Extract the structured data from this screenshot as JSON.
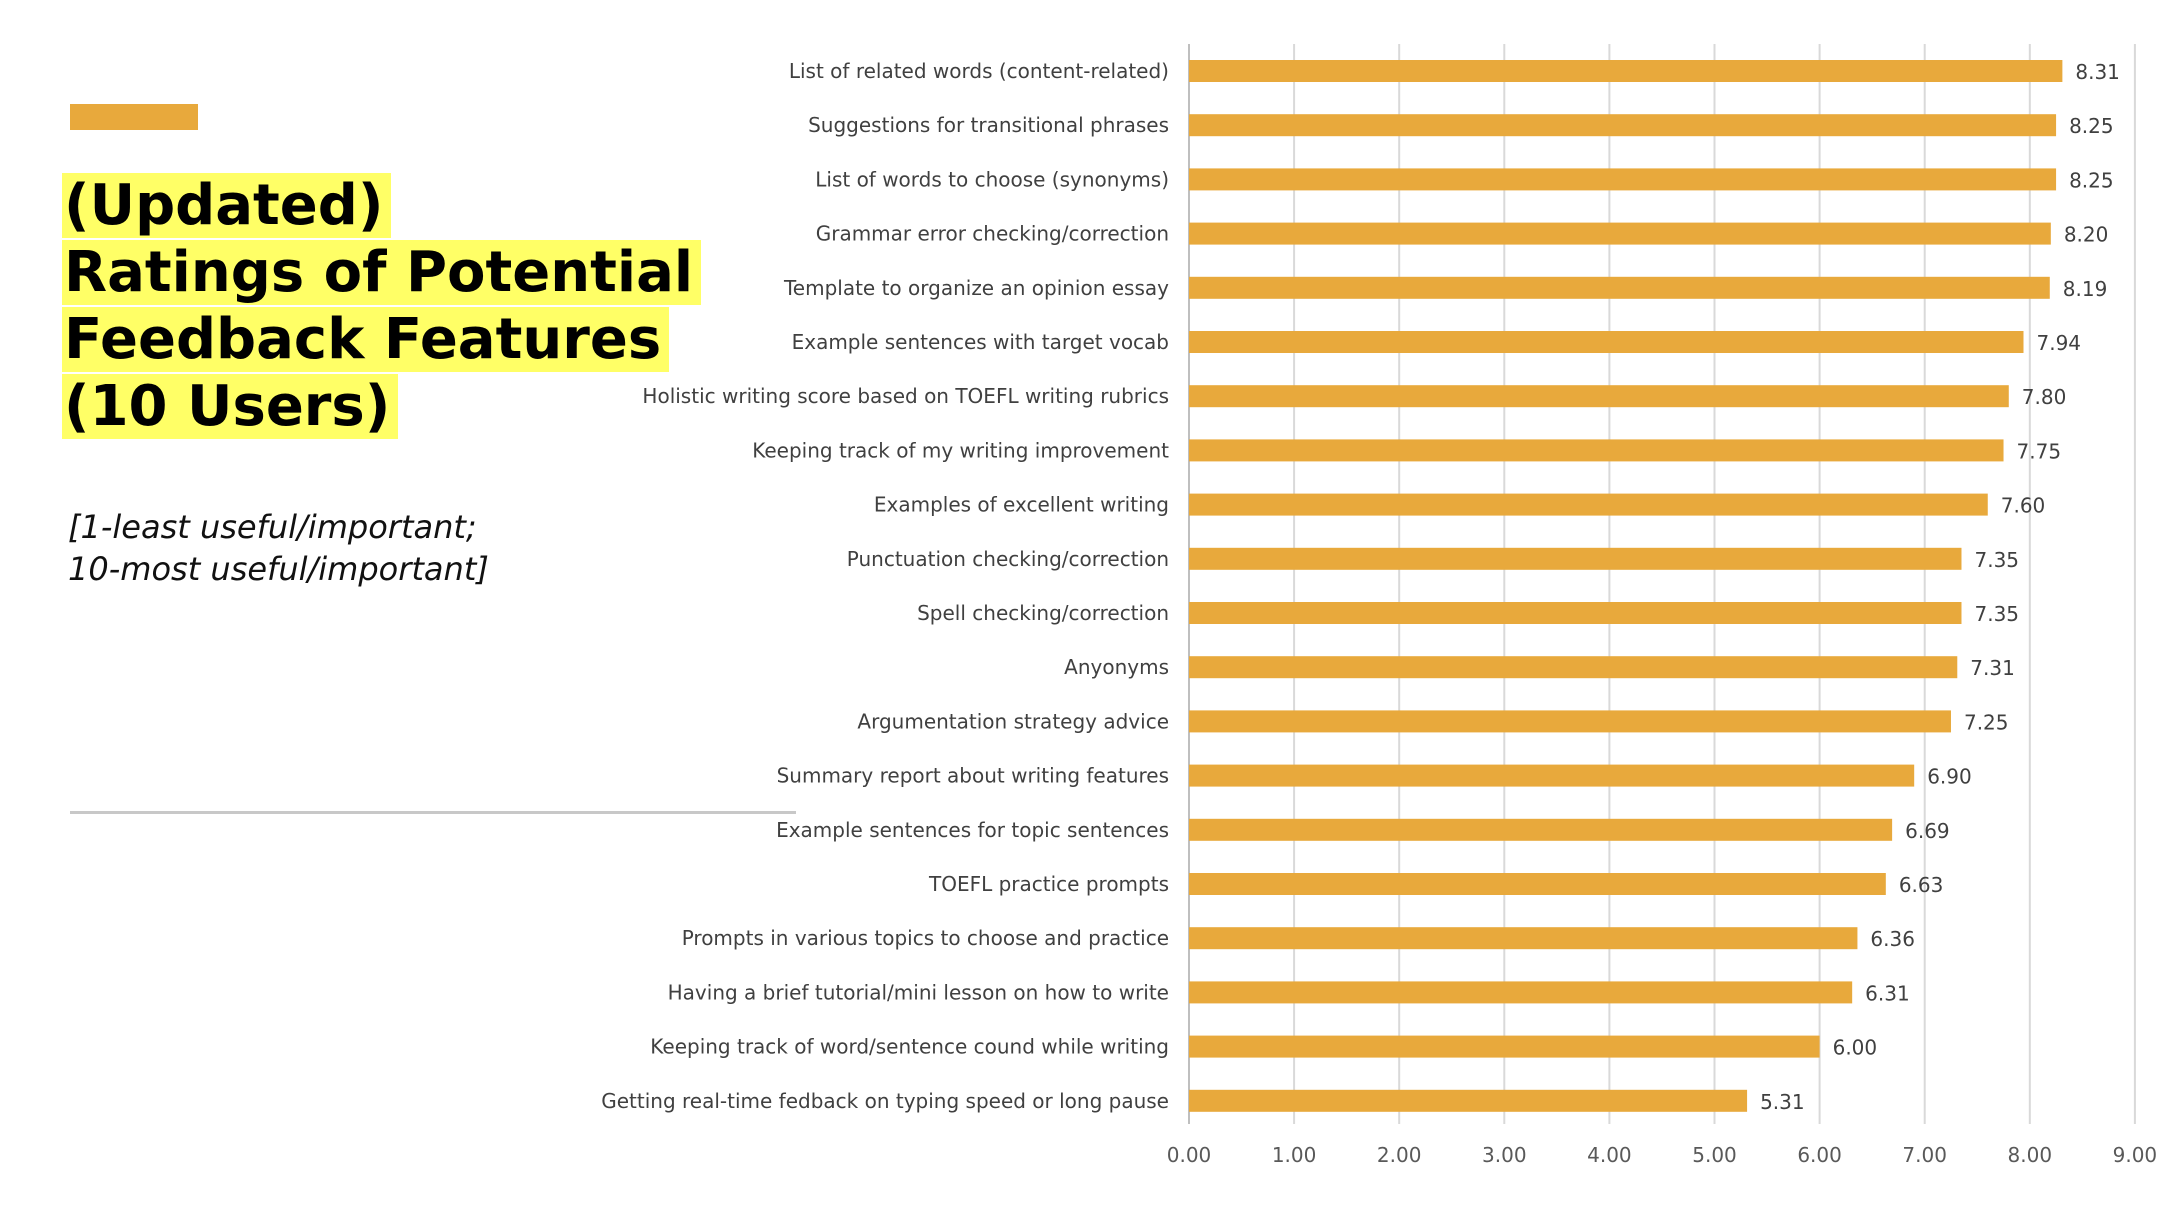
{
  "slide": {
    "title_lines": [
      "(Updated)",
      "Ratings of Potential",
      "Feedback Features",
      "(10 Users)"
    ],
    "subtitle_lines": [
      "[1-least useful/important;",
      "10-most useful/important]"
    ],
    "accent_color": "#E8A93C",
    "highlight_color": "#FFFF66"
  },
  "chart_data": {
    "type": "bar",
    "orientation": "horizontal",
    "categories": [
      "List of related words (content-related)",
      "Suggestions for transitional phrases",
      "List of words to choose (synonyms)",
      "Grammar error checking/correction",
      "Template to organize an opinion essay",
      "Example sentences with target vocab",
      "Holistic writing score based on TOEFL writing rubrics",
      "Keeping track of my writing improvement",
      "Examples of excellent writing",
      "Punctuation checking/correction",
      "Spell checking/correction",
      "Anyonyms",
      "Argumentation strategy advice",
      "Summary report about writing features",
      "Example sentences for topic sentences",
      "TOEFL practice prompts",
      "Prompts in various topics to choose and practice",
      "Having a brief tutorial/mini lesson on how to write",
      "Keeping track of word/sentence cound while writing",
      "Getting real-time fedback on typing speed or long pause"
    ],
    "values": [
      8.31,
      8.25,
      8.25,
      8.2,
      8.19,
      7.94,
      7.8,
      7.75,
      7.6,
      7.35,
      7.35,
      7.31,
      7.25,
      6.9,
      6.69,
      6.63,
      6.36,
      6.31,
      6.0,
      5.31
    ],
    "value_labels": [
      "8.31",
      "8.25",
      "8.25",
      "8.20",
      "8.19",
      "7.94",
      "7.80",
      "7.75",
      "7.60",
      "7.35",
      "7.35",
      "7.31",
      "7.25",
      "6.90",
      "6.69",
      "6.63",
      "6.36",
      "6.31",
      "6.00",
      "5.31"
    ],
    "x_ticks": [
      "0.00",
      "1.00",
      "2.00",
      "3.00",
      "4.00",
      "5.00",
      "6.00",
      "7.00",
      "8.00",
      "9.00"
    ],
    "xlim": [
      0,
      9
    ],
    "grid": true,
    "bar_color": "#E8A93C",
    "title": "",
    "xlabel": "",
    "ylabel": ""
  }
}
